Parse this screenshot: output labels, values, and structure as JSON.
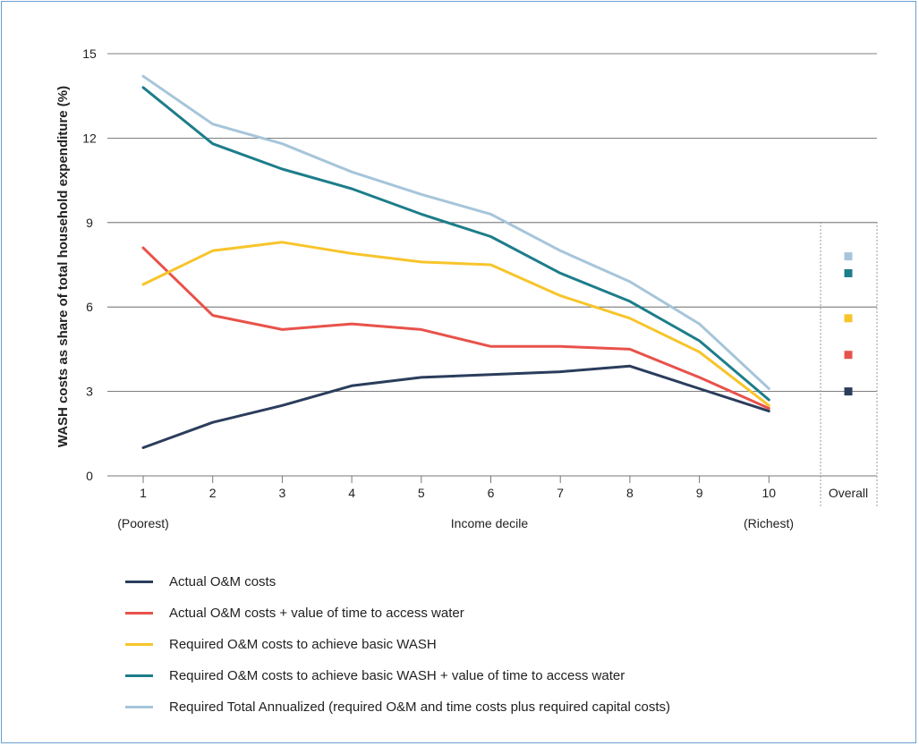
{
  "chart_data": {
    "type": "line",
    "ylabel": "WASH costs as share of total household expenditure (%)",
    "xlabel": "Income decile",
    "x": [
      1,
      2,
      3,
      4,
      5,
      6,
      7,
      8,
      9,
      10
    ],
    "x_ticks": [
      "1",
      "2",
      "3",
      "4",
      "5",
      "6",
      "7",
      "8",
      "9",
      "10",
      "Overall"
    ],
    "x_sublabels": {
      "left": "(Poorest)",
      "right": "(Richest)"
    },
    "y_ticks": [
      "0",
      "3",
      "6",
      "9",
      "12",
      "15"
    ],
    "ylim": [
      0,
      15
    ],
    "grid": "horizontal",
    "legend_position": "bottom",
    "series": [
      {
        "name": "Actual O&M costs",
        "color": "#2b3d5c",
        "values": [
          1.0,
          1.9,
          2.5,
          3.2,
          3.5,
          3.6,
          3.7,
          3.9,
          3.1,
          2.3
        ],
        "overall": 3.0
      },
      {
        "name": "Actual O&M costs + value of time to access water",
        "color": "#e8524a",
        "values": [
          8.1,
          5.7,
          5.2,
          5.4,
          5.2,
          4.6,
          4.6,
          4.5,
          3.5,
          2.4
        ],
        "overall": 4.3
      },
      {
        "name": "Required O&M costs to achieve basic WASH",
        "color": "#f7c52b",
        "values": [
          6.8,
          8.0,
          8.3,
          7.9,
          7.6,
          7.5,
          6.4,
          5.6,
          4.4,
          2.5
        ],
        "overall": 5.6
      },
      {
        "name": "Required O&M costs to achieve basic WASH + value of time to access water",
        "color": "#1d7d8a",
        "values": [
          13.8,
          11.8,
          10.9,
          10.2,
          9.3,
          8.5,
          7.2,
          6.2,
          4.8,
          2.7
        ],
        "overall": 7.2
      },
      {
        "name": "Required Total Annualized (required O&M and time costs plus required capital costs)",
        "color": "#a6c5da",
        "values": [
          14.2,
          12.5,
          11.8,
          10.8,
          10.0,
          9.3,
          8.0,
          6.9,
          5.4,
          3.1
        ],
        "overall": 7.8
      }
    ]
  }
}
